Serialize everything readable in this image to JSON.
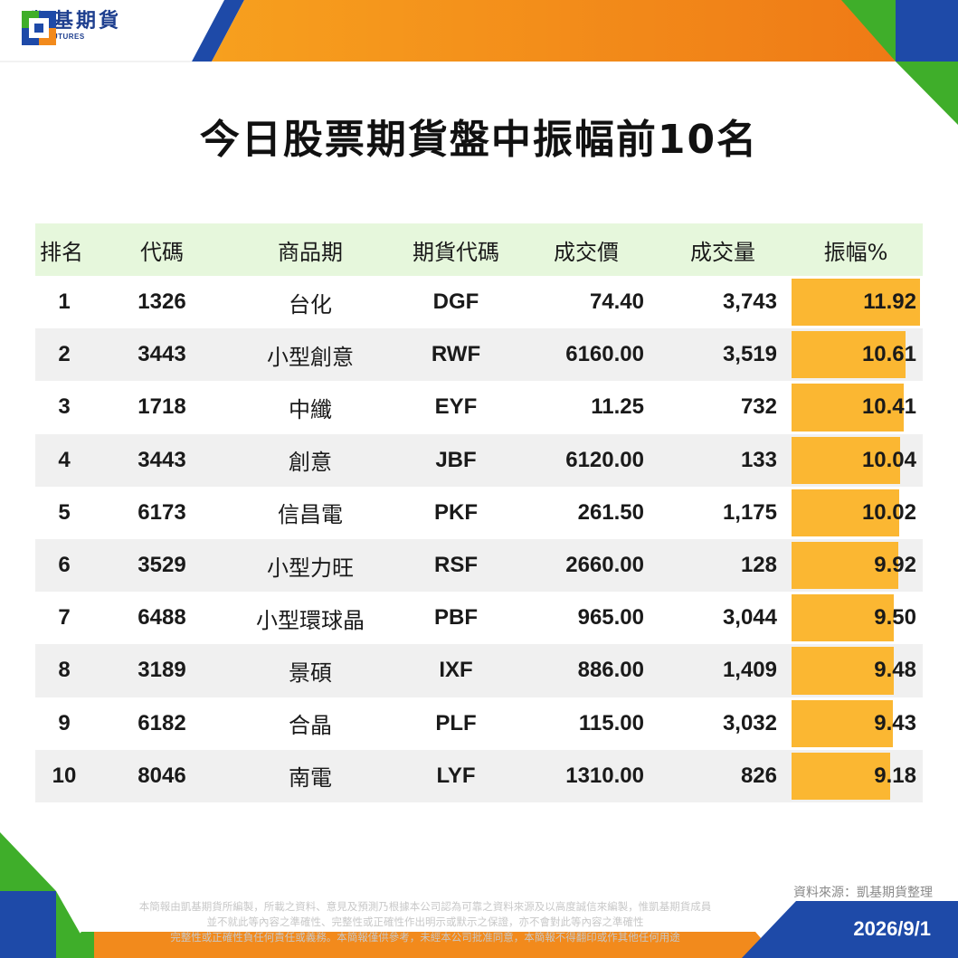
{
  "brand": {
    "name_cn": "凱基期貨",
    "name_en": "KGI FUTURES"
  },
  "title": "今日股票期貨盤中振幅前10名",
  "colors": {
    "header_bg": "#e6f7dc",
    "alt_row": "#f0f0f0",
    "bar": "#fbb732",
    "brand_blue": "#1e4aa8",
    "brand_orange": "#f28a1c",
    "brand_green": "#3fae2a"
  },
  "chart_data": {
    "type": "table",
    "columns": [
      "排名",
      "代碼",
      "商品期",
      "期貨代碼",
      "成交價",
      "成交量",
      "振幅%"
    ],
    "rows": [
      {
        "rank": "1",
        "code": "1326",
        "name": "台化",
        "futures_code": "DGF",
        "price": "74.40",
        "volume": "3,743",
        "amplitude": 11.92
      },
      {
        "rank": "2",
        "code": "3443",
        "name": "小型創意",
        "futures_code": "RWF",
        "price": "6160.00",
        "volume": "3,519",
        "amplitude": 10.61
      },
      {
        "rank": "3",
        "code": "1718",
        "name": "中纖",
        "futures_code": "EYF",
        "price": "11.25",
        "volume": "732",
        "amplitude": 10.41
      },
      {
        "rank": "4",
        "code": "3443",
        "name": "創意",
        "futures_code": "JBF",
        "price": "6120.00",
        "volume": "133",
        "amplitude": 10.04
      },
      {
        "rank": "5",
        "code": "6173",
        "name": "信昌電",
        "futures_code": "PKF",
        "price": "261.50",
        "volume": "1,175",
        "amplitude": 10.02
      },
      {
        "rank": "6",
        "code": "3529",
        "name": "小型力旺",
        "futures_code": "RSF",
        "price": "2660.00",
        "volume": "128",
        "amplitude": 9.92
      },
      {
        "rank": "7",
        "code": "6488",
        "name": "小型環球晶",
        "futures_code": "PBF",
        "price": "965.00",
        "volume": "3,044",
        "amplitude": 9.5
      },
      {
        "rank": "8",
        "code": "3189",
        "name": "景碩",
        "futures_code": "IXF",
        "price": "886.00",
        "volume": "1,409",
        "amplitude": 9.48
      },
      {
        "rank": "9",
        "code": "6182",
        "name": "合晶",
        "futures_code": "PLF",
        "price": "115.00",
        "volume": "3,032",
        "amplitude": 9.43
      },
      {
        "rank": "10",
        "code": "8046",
        "name": "南電",
        "futures_code": "LYF",
        "price": "1310.00",
        "volume": "826",
        "amplitude": 9.18
      }
    ]
  },
  "footer": {
    "source": "資料來源：凱基期貨整理",
    "disclaimer": [
      "本簡報由凱基期貨所編製，所載之資料、意見及預測乃根據本公司認為可靠之資料來源及以高度誠信來編製，惟凱基期貨成員",
      "並不就此等內容之準確性、完整性或正確性作出明示或默示之保證，亦不會對此等內容之準確性",
      "完整性或正確性負任何責任或義務。本簡報僅供參考，未經本公司批准同意，本簡報不得翻印或作其他任何用途"
    ],
    "date": "2026/9/1"
  }
}
